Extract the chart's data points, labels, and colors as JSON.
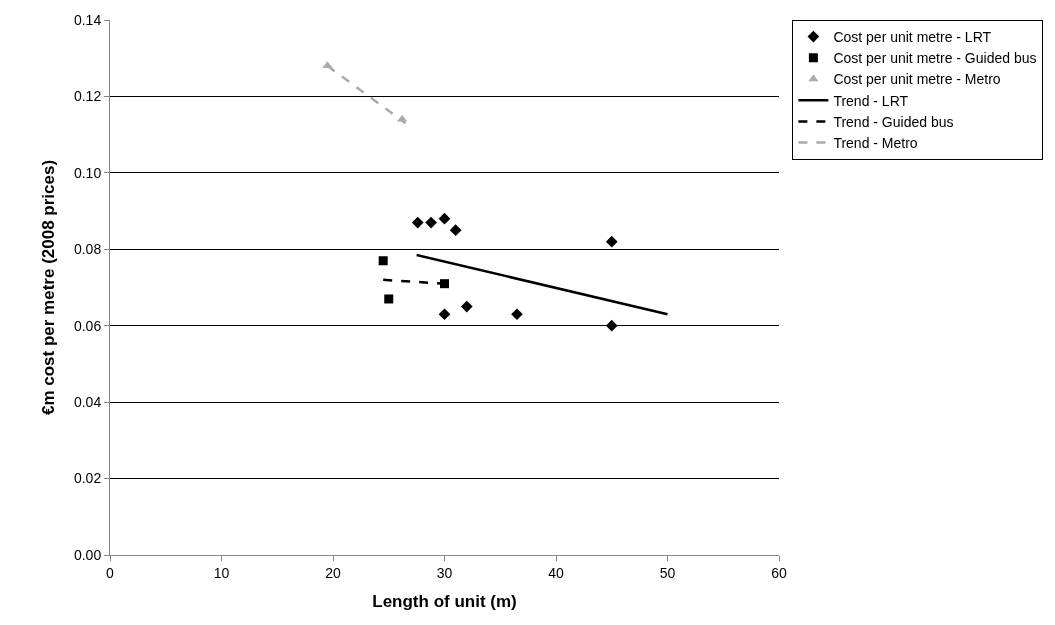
{
  "chart_data": {
    "type": "scatter",
    "xlabel": "Length of unit (m)",
    "ylabel": "€m cost per metre (2008 prices)",
    "xlim": [
      0,
      60
    ],
    "xticks": [
      0,
      10,
      20,
      30,
      40,
      50,
      60
    ],
    "ylim": [
      0,
      0.14
    ],
    "yticks": [
      {
        "value": 0,
        "label": "0.00"
      },
      {
        "value": 0.02,
        "label": "0.02"
      },
      {
        "value": 0.04,
        "label": "0.04"
      },
      {
        "value": 0.06,
        "label": "0.06"
      },
      {
        "value": 0.08,
        "label": "0.08"
      },
      {
        "value": 0.1,
        "label": "0.10"
      },
      {
        "value": 0.12,
        "label": "0.12"
      },
      {
        "value": 0.14,
        "label": "0.14"
      }
    ],
    "grid": "y",
    "legend": "right",
    "series": [
      {
        "name": "Cost per unit metre - LRT",
        "marker": "diamond",
        "color": "#000000",
        "x": [
          27.6,
          28.8,
          30,
          31,
          30,
          32,
          36.5,
          45,
          45
        ],
        "values": [
          0.087,
          0.087,
          0.088,
          0.085,
          0.063,
          0.065,
          0.063,
          0.082,
          0.06
        ]
      },
      {
        "name": "Cost per unit metre - Guided bus",
        "marker": "square",
        "color": "#000000",
        "x": [
          24.5,
          25,
          30
        ],
        "values": [
          0.077,
          0.067,
          0.071
        ]
      },
      {
        "name": "Cost per unit metre - Metro",
        "marker": "triangle",
        "color": "#aaaaaa",
        "x": [
          19.5,
          26.2
        ],
        "values": [
          0.128,
          0.114
        ]
      },
      {
        "name": "Trend - LRT",
        "type": "line",
        "line_style": "solid",
        "color": "#000000",
        "x": [
          27.5,
          50
        ],
        "values": [
          0.0785,
          0.063
        ]
      },
      {
        "name": "Trend - Guided bus",
        "type": "line",
        "line_style": "dashed",
        "color": "#000000",
        "x": [
          24.5,
          30
        ],
        "values": [
          0.072,
          0.071
        ]
      },
      {
        "name": "Trend - Metro",
        "type": "line",
        "line_style": "dashed",
        "color": "#aaaaaa",
        "x": [
          19.5,
          26.5
        ],
        "values": [
          0.128,
          0.113
        ]
      }
    ]
  }
}
